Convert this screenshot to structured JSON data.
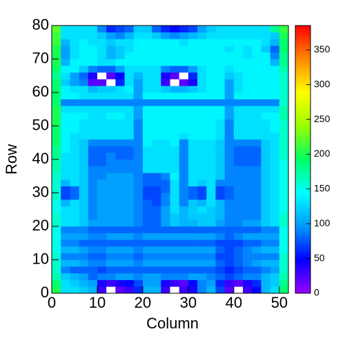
{
  "chart_data": {
    "type": "heatmap",
    "x_label": "Column",
    "y_label": "Row",
    "xlim": [
      0,
      52
    ],
    "ylim": [
      0,
      80
    ],
    "zlim": [
      0,
      385
    ],
    "xticks": [
      0,
      10,
      20,
      30,
      40,
      50
    ],
    "yticks": [
      0,
      10,
      20,
      30,
      40,
      50,
      60,
      70,
      80
    ],
    "zticks": [
      0,
      50,
      100,
      150,
      200,
      250,
      300,
      350
    ],
    "xbins": [
      0,
      2,
      4,
      6,
      8,
      10,
      12,
      14,
      16,
      18,
      20,
      22,
      24,
      26,
      28,
      30,
      32,
      34,
      36,
      38,
      40,
      42,
      44,
      46,
      48,
      50,
      52
    ],
    "ybins": [
      0,
      2,
      4,
      6,
      8,
      10,
      12,
      14,
      16,
      18,
      20,
      22,
      24,
      26,
      28,
      30,
      32,
      34,
      36,
      38,
      40,
      42,
      44,
      46,
      48,
      50,
      52,
      54,
      56,
      58,
      60,
      62,
      64,
      66,
      68,
      70,
      72,
      74,
      76,
      78,
      80
    ],
    "colormap": [
      "#9900ff",
      "#0000ff",
      "#0099ff",
      "#00ffff",
      "#00ff66",
      "#99ff00",
      "#ffff00",
      "#ff8800",
      "#ff0000"
    ],
    "z": [
      [
        200,
        130,
        130,
        120,
        110,
        30,
        0,
        20,
        30,
        60,
        110,
        110,
        30,
        0,
        30,
        40,
        90,
        110,
        70,
        20,
        0,
        30,
        50,
        110,
        130,
        190
      ],
      [
        190,
        130,
        120,
        110,
        100,
        40,
        30,
        40,
        50,
        70,
        100,
        100,
        40,
        30,
        20,
        50,
        90,
        100,
        60,
        30,
        20,
        40,
        60,
        110,
        120,
        180
      ],
      [
        170,
        120,
        110,
        100,
        80,
        90,
        90,
        100,
        100,
        90,
        100,
        100,
        90,
        90,
        90,
        100,
        100,
        90,
        80,
        70,
        80,
        90,
        90,
        110,
        120,
        170
      ],
      [
        160,
        90,
        80,
        80,
        80,
        70,
        80,
        80,
        80,
        80,
        80,
        80,
        80,
        80,
        80,
        80,
        80,
        80,
        70,
        60,
        70,
        80,
        80,
        90,
        100,
        160
      ],
      [
        160,
        110,
        110,
        100,
        90,
        90,
        100,
        100,
        100,
        90,
        100,
        100,
        100,
        100,
        100,
        100,
        100,
        100,
        80,
        70,
        80,
        90,
        100,
        110,
        110,
        160
      ],
      [
        160,
        90,
        90,
        90,
        80,
        80,
        90,
        90,
        90,
        80,
        90,
        90,
        90,
        90,
        90,
        90,
        90,
        90,
        70,
        70,
        80,
        90,
        90,
        90,
        90,
        160
      ],
      [
        150,
        110,
        110,
        100,
        90,
        90,
        100,
        100,
        100,
        90,
        100,
        100,
        100,
        100,
        100,
        100,
        100,
        100,
        80,
        70,
        80,
        90,
        100,
        110,
        110,
        150
      ],
      [
        150,
        90,
        90,
        80,
        80,
        80,
        80,
        80,
        80,
        80,
        80,
        80,
        80,
        80,
        80,
        80,
        80,
        80,
        70,
        70,
        70,
        80,
        80,
        90,
        90,
        150
      ],
      [
        150,
        100,
        100,
        100,
        90,
        90,
        100,
        100,
        100,
        90,
        100,
        100,
        100,
        100,
        100,
        100,
        100,
        100,
        90,
        80,
        90,
        100,
        100,
        100,
        100,
        150
      ],
      [
        150,
        90,
        90,
        90,
        80,
        80,
        80,
        80,
        80,
        80,
        80,
        80,
        80,
        80,
        80,
        80,
        80,
        80,
        80,
        80,
        80,
        80,
        80,
        90,
        90,
        150
      ],
      [
        160,
        130,
        130,
        120,
        100,
        100,
        100,
        100,
        100,
        90,
        80,
        80,
        100,
        120,
        110,
        110,
        120,
        120,
        100,
        90,
        90,
        100,
        100,
        120,
        130,
        160
      ],
      [
        160,
        130,
        130,
        120,
        90,
        100,
        100,
        100,
        100,
        90,
        80,
        80,
        100,
        120,
        110,
        120,
        120,
        120,
        110,
        90,
        90,
        90,
        90,
        120,
        130,
        160
      ],
      [
        150,
        130,
        130,
        120,
        90,
        100,
        100,
        100,
        100,
        90,
        80,
        80,
        100,
        130,
        110,
        120,
        130,
        120,
        110,
        90,
        90,
        90,
        90,
        120,
        130,
        150
      ],
      [
        150,
        110,
        130,
        120,
        90,
        100,
        100,
        100,
        100,
        90,
        80,
        70,
        90,
        130,
        90,
        120,
        110,
        130,
        110,
        90,
        90,
        90,
        90,
        120,
        130,
        150
      ],
      [
        160,
        70,
        80,
        120,
        90,
        100,
        100,
        100,
        100,
        90,
        70,
        70,
        90,
        130,
        90,
        80,
        70,
        130,
        70,
        80,
        90,
        90,
        90,
        120,
        130,
        150
      ],
      [
        160,
        70,
        80,
        120,
        90,
        100,
        100,
        100,
        100,
        90,
        70,
        70,
        80,
        130,
        90,
        80,
        70,
        130,
        70,
        80,
        90,
        90,
        90,
        120,
        130,
        150
      ],
      [
        160,
        110,
        130,
        120,
        90,
        100,
        100,
        100,
        100,
        90,
        80,
        80,
        80,
        130,
        90,
        130,
        120,
        130,
        90,
        90,
        90,
        90,
        90,
        120,
        130,
        150
      ],
      [
        160,
        130,
        130,
        120,
        90,
        90,
        100,
        100,
        100,
        90,
        80,
        80,
        90,
        140,
        90,
        130,
        130,
        130,
        120,
        90,
        90,
        90,
        90,
        120,
        130,
        150
      ],
      [
        170,
        130,
        130,
        120,
        90,
        90,
        90,
        90,
        90,
        90,
        130,
        130,
        130,
        130,
        90,
        130,
        130,
        130,
        120,
        90,
        90,
        90,
        90,
        120,
        130,
        150
      ],
      [
        170,
        130,
        130,
        120,
        80,
        80,
        90,
        90,
        90,
        90,
        130,
        130,
        130,
        130,
        90,
        130,
        130,
        130,
        120,
        90,
        80,
        80,
        80,
        120,
        130,
        150
      ],
      [
        180,
        130,
        130,
        120,
        80,
        80,
        90,
        80,
        80,
        90,
        130,
        130,
        130,
        130,
        90,
        130,
        130,
        130,
        120,
        90,
        80,
        80,
        80,
        120,
        130,
        160
      ],
      [
        180,
        140,
        130,
        120,
        80,
        80,
        80,
        80,
        80,
        90,
        130,
        130,
        130,
        130,
        90,
        130,
        130,
        130,
        120,
        90,
        80,
        80,
        80,
        120,
        130,
        160
      ],
      [
        190,
        140,
        130,
        120,
        90,
        90,
        90,
        90,
        90,
        90,
        140,
        130,
        130,
        140,
        90,
        130,
        130,
        130,
        120,
        90,
        90,
        90,
        90,
        120,
        130,
        160
      ],
      [
        190,
        140,
        130,
        130,
        130,
        130,
        130,
        130,
        130,
        90,
        140,
        140,
        140,
        140,
        130,
        140,
        140,
        140,
        130,
        90,
        130,
        130,
        130,
        130,
        130,
        160
      ],
      [
        190,
        140,
        140,
        130,
        130,
        130,
        130,
        130,
        130,
        90,
        140,
        140,
        140,
        140,
        140,
        140,
        140,
        140,
        130,
        90,
        130,
        130,
        130,
        130,
        140,
        160
      ],
      [
        200,
        140,
        140,
        130,
        130,
        130,
        130,
        130,
        130,
        90,
        140,
        140,
        140,
        140,
        140,
        140,
        140,
        140,
        130,
        90,
        130,
        130,
        130,
        130,
        140,
        160
      ],
      [
        200,
        140,
        140,
        140,
        130,
        130,
        140,
        140,
        130,
        100,
        140,
        140,
        140,
        140,
        140,
        140,
        140,
        140,
        140,
        100,
        130,
        130,
        130,
        140,
        140,
        170
      ],
      [
        200,
        130,
        130,
        130,
        130,
        130,
        130,
        130,
        130,
        100,
        140,
        140,
        140,
        140,
        140,
        140,
        140,
        140,
        140,
        100,
        130,
        130,
        130,
        130,
        130,
        170
      ],
      [
        190,
        90,
        90,
        90,
        90,
        90,
        90,
        90,
        90,
        90,
        90,
        90,
        90,
        90,
        90,
        90,
        90,
        90,
        90,
        90,
        90,
        90,
        90,
        90,
        90,
        160
      ],
      [
        190,
        140,
        140,
        130,
        130,
        130,
        130,
        130,
        130,
        100,
        140,
        140,
        140,
        140,
        140,
        140,
        140,
        140,
        140,
        100,
        140,
        140,
        140,
        140,
        140,
        160
      ],
      [
        190,
        140,
        130,
        130,
        110,
        120,
        120,
        130,
        140,
        100,
        130,
        130,
        120,
        110,
        110,
        120,
        130,
        140,
        140,
        100,
        130,
        140,
        140,
        140,
        140,
        160
      ],
      [
        190,
        120,
        100,
        90,
        20,
        20,
        0,
        60,
        130,
        100,
        130,
        130,
        30,
        0,
        20,
        40,
        130,
        140,
        140,
        100,
        130,
        140,
        140,
        140,
        140,
        160
      ],
      [
        180,
        130,
        100,
        80,
        40,
        0,
        20,
        50,
        130,
        110,
        130,
        130,
        40,
        20,
        0,
        60,
        130,
        140,
        140,
        120,
        130,
        140,
        140,
        140,
        140,
        160
      ],
      [
        190,
        140,
        140,
        120,
        90,
        80,
        80,
        100,
        130,
        130,
        130,
        130,
        90,
        80,
        80,
        100,
        130,
        140,
        140,
        130,
        140,
        140,
        140,
        140,
        140,
        170
      ],
      [
        200,
        110,
        140,
        140,
        140,
        130,
        130,
        140,
        140,
        140,
        140,
        140,
        140,
        140,
        140,
        140,
        140,
        140,
        140,
        140,
        140,
        140,
        140,
        140,
        110,
        180
      ],
      [
        200,
        100,
        130,
        140,
        140,
        130,
        110,
        120,
        140,
        140,
        140,
        140,
        140,
        140,
        140,
        140,
        140,
        140,
        140,
        140,
        140,
        130,
        140,
        140,
        90,
        180
      ],
      [
        200,
        100,
        130,
        140,
        140,
        130,
        110,
        120,
        130,
        140,
        140,
        140,
        140,
        140,
        140,
        140,
        140,
        140,
        140,
        130,
        140,
        130,
        140,
        120,
        80,
        190
      ],
      [
        210,
        110,
        130,
        140,
        130,
        130,
        120,
        130,
        130,
        140,
        140,
        140,
        140,
        140,
        130,
        140,
        140,
        140,
        140,
        140,
        140,
        140,
        140,
        130,
        110,
        190
      ],
      [
        210,
        130,
        130,
        130,
        130,
        120,
        100,
        90,
        110,
        130,
        130,
        120,
        100,
        90,
        100,
        110,
        120,
        130,
        130,
        130,
        130,
        130,
        130,
        130,
        120,
        200
      ],
      [
        220,
        130,
        130,
        130,
        130,
        90,
        60,
        70,
        80,
        120,
        120,
        80,
        60,
        50,
        60,
        70,
        100,
        120,
        130,
        130,
        130,
        130,
        130,
        130,
        180,
        210
      ]
    ]
  }
}
